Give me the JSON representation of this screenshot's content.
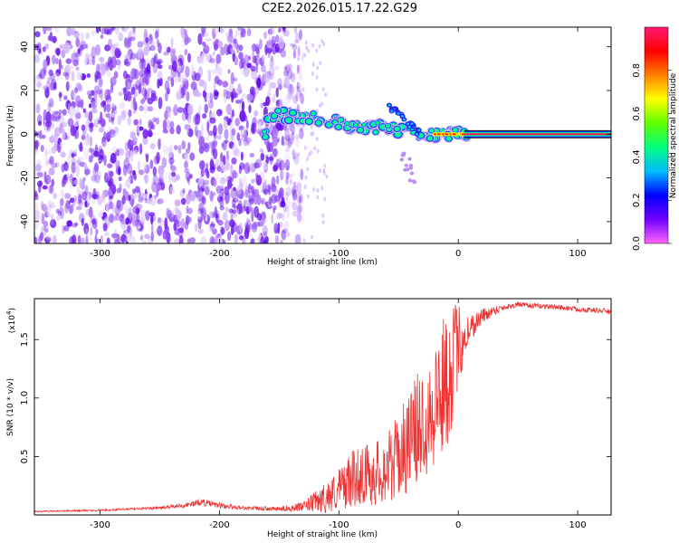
{
  "title": "C2E2.2026.015.17.22.G29",
  "chart_data": [
    {
      "type": "heatmap",
      "xlabel": "Height of straight line (km)",
      "ylabel": "Frequency (Hz)",
      "xlim": [
        -355,
        128
      ],
      "ylim": [
        -50,
        49
      ],
      "xticks": [
        -300,
        -200,
        -100,
        0,
        100
      ],
      "yticks": [
        -40,
        -20,
        0,
        20,
        40
      ],
      "colorbar": {
        "label": "Normalized spectral amplitude",
        "range": [
          0.0,
          1.0
        ],
        "ticks": [
          0.0,
          0.2,
          0.4,
          0.6,
          0.8
        ],
        "colors": [
          "#ff66ff",
          "#7000ff",
          "#0000ff",
          "#00bbff",
          "#00ff80",
          "#60ff00",
          "#ffff00",
          "#ff8000",
          "#ff0000",
          "#ff1a75"
        ]
      },
      "features": {
        "noise_region_x": [
          -355,
          -130
        ],
        "signal_track": [
          {
            "x": -160,
            "f": 9
          },
          {
            "x": -130,
            "f": 8
          },
          {
            "x": -110,
            "f": 6
          },
          {
            "x": -90,
            "f": 4
          },
          {
            "x": -70,
            "f": 3
          },
          {
            "x": -50,
            "f": 2
          },
          {
            "x": -30,
            "f": 0
          },
          {
            "x": -10,
            "f": 0
          },
          {
            "x": 5,
            "f": 0
          },
          {
            "x": 128,
            "f": 0
          }
        ],
        "constant_line_x": [
          5,
          128
        ],
        "constant_line_f": 0
      }
    },
    {
      "type": "line",
      "xlabel": "Height of straight line (km)",
      "ylabel": "SNR (10 * v/v)",
      "y_multiplier": "(x10",
      "y_multiplier_exponent": "4",
      "y_multiplier_close": ")",
      "xlim": [
        -355,
        128
      ],
      "ylim": [
        0,
        18500
      ],
      "xticks": [
        -300,
        -200,
        -100,
        0,
        100
      ],
      "yticks": [
        5000,
        10000,
        15000
      ],
      "ytick_labels": [
        "0.5",
        "1.0",
        "1.5"
      ],
      "series": [
        {
          "color": "#ee3333",
          "x": [
            -355,
            -300,
            -250,
            -230,
            -215,
            -200,
            -180,
            -150,
            -130,
            -110,
            -100,
            -90,
            -80,
            -70,
            -60,
            -50,
            -40,
            -30,
            -20,
            -10,
            -5,
            0,
            10,
            20,
            30,
            40,
            50,
            60,
            80,
            100,
            128
          ],
          "y": [
            300,
            400,
            600,
            800,
            1100,
            800,
            600,
            500,
            700,
            1500,
            2200,
            3000,
            3500,
            3500,
            4000,
            5000,
            6500,
            8000,
            9500,
            11500,
            13000,
            14500,
            16000,
            17000,
            17500,
            17800,
            18000,
            17900,
            17800,
            17600,
            17400
          ],
          "noise_amplitude": [
            50,
            80,
            120,
            200,
            300,
            250,
            150,
            200,
            400,
            1400,
            1800,
            2400,
            2600,
            2800,
            3000,
            3600,
            4400,
            5000,
            5600,
            6000,
            5400,
            3600,
            1200,
            700,
            400,
            250,
            220,
            220,
            220,
            220,
            220
          ]
        }
      ]
    }
  ]
}
